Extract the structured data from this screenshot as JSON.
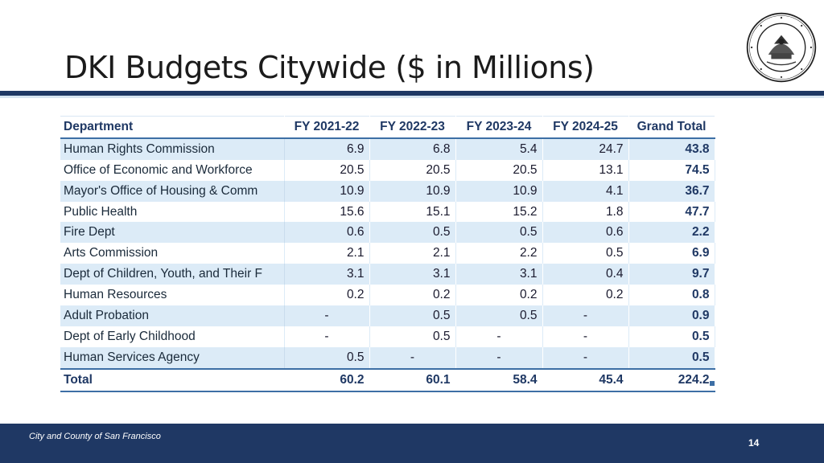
{
  "slide": {
    "title": "DKI Budgets Citywide ($ in Millions)",
    "footer_text": "City and County of San Francisco",
    "page_number": "14",
    "seal_label": "SEAL OF THE CITY AND COUNTY OF SAN FRANCISCO"
  },
  "colors": {
    "navy": "#1f3864",
    "band": "#dcebf7",
    "accent": "#3d6fa5"
  },
  "table": {
    "headers": [
      "Department",
      "FY 2021-22",
      "FY 2022-23",
      "FY 2023-24",
      "FY 2024-25",
      "Grand Total"
    ],
    "rows": [
      [
        "Human Rights Commission",
        "6.9",
        "6.8",
        "5.4",
        "24.7",
        "43.8"
      ],
      [
        "Office of Economic and Workforce",
        "20.5",
        "20.5",
        "20.5",
        "13.1",
        "74.5"
      ],
      [
        "Mayor's Office of Housing & Comm",
        "10.9",
        "10.9",
        "10.9",
        "4.1",
        "36.7"
      ],
      [
        "Public Health",
        "15.6",
        "15.1",
        "15.2",
        "1.8",
        "47.7"
      ],
      [
        "Fire Dept",
        "0.6",
        "0.5",
        "0.5",
        "0.6",
        "2.2"
      ],
      [
        "Arts Commission",
        "2.1",
        "2.1",
        "2.2",
        "0.5",
        "6.9"
      ],
      [
        "Dept of Children, Youth, and Their F",
        "3.1",
        "3.1",
        "3.1",
        "0.4",
        "9.7"
      ],
      [
        "Human Resources",
        "0.2",
        "0.2",
        "0.2",
        "0.2",
        "0.8"
      ],
      [
        "Adult Probation",
        "-",
        "0.5",
        "0.5",
        "-",
        "0.9"
      ],
      [
        "Dept of Early Childhood",
        "-",
        "0.5",
        "-",
        "-",
        "0.5"
      ],
      [
        "Human Services Agency",
        "0.5",
        "-",
        "-",
        "-",
        "0.5"
      ]
    ],
    "total": [
      "Total",
      "60.2",
      "60.1",
      "58.4",
      "45.4",
      "224.2"
    ]
  }
}
